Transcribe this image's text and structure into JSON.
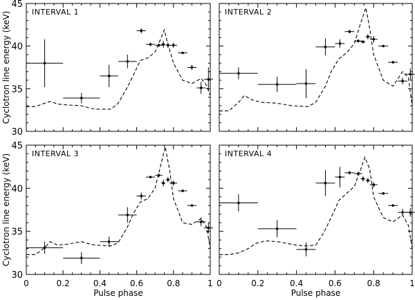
{
  "figure": {
    "ylabel": "Cyclotron line energy (keV)",
    "xlabel": "Pulse phase"
  },
  "chart_data": [
    {
      "type": "scatter",
      "title": "INTERVAL 1",
      "xlabel": "",
      "ylabel": "Cyclotron line energy (keV)",
      "xlim": [
        0,
        1
      ],
      "ylim": [
        30,
        45
      ],
      "x_ticks": [],
      "y_ticks": [
        "30",
        "35",
        "40",
        "45"
      ],
      "points": [
        {
          "x": 0.1,
          "y": 38.0,
          "xerr": 0.1,
          "yerr": 2.8
        },
        {
          "x": 0.3,
          "y": 33.9,
          "xerr": 0.1,
          "yerr": 0.6
        },
        {
          "x": 0.45,
          "y": 36.5,
          "xerr": 0.05,
          "yerr": 1.3
        },
        {
          "x": 0.55,
          "y": 38.2,
          "xerr": 0.05,
          "yerr": 0.8
        },
        {
          "x": 0.625,
          "y": 41.8,
          "xerr": 0.025,
          "yerr": 0.3
        },
        {
          "x": 0.675,
          "y": 40.2,
          "xerr": 0.025,
          "yerr": 0.2
        },
        {
          "x": 0.72,
          "y": 40.1,
          "xerr": 0.02,
          "yerr": 0.2
        },
        {
          "x": 0.745,
          "y": 40.2,
          "xerr": 0.012,
          "yerr": 0.4
        },
        {
          "x": 0.77,
          "y": 40.1,
          "xerr": 0.012,
          "yerr": 0.3
        },
        {
          "x": 0.8,
          "y": 40.1,
          "xerr": 0.02,
          "yerr": 0.3
        },
        {
          "x": 0.85,
          "y": 39.2,
          "xerr": 0.025,
          "yerr": 0.1
        },
        {
          "x": 0.9,
          "y": 37.5,
          "xerr": 0.025,
          "yerr": 0.3
        },
        {
          "x": 0.95,
          "y": 35.1,
          "xerr": 0.025,
          "yerr": 0.7
        },
        {
          "x": 0.99,
          "y": 36.1,
          "xerr": 0.025,
          "yerr": 1.4
        }
      ],
      "profile": [
        [
          0,
          32.9
        ],
        [
          0.05,
          32.9
        ],
        [
          0.1,
          33.3
        ],
        [
          0.13,
          33.5
        ],
        [
          0.17,
          33.2
        ],
        [
          0.22,
          33.1
        ],
        [
          0.3,
          33.0
        ],
        [
          0.35,
          32.7
        ],
        [
          0.38,
          32.6
        ],
        [
          0.46,
          32.6
        ],
        [
          0.5,
          33.3
        ],
        [
          0.55,
          35.2
        ],
        [
          0.58,
          36.5
        ],
        [
          0.62,
          38.3
        ],
        [
          0.66,
          38.6
        ],
        [
          0.7,
          39.3
        ],
        [
          0.73,
          40.8
        ],
        [
          0.75,
          41.9
        ],
        [
          0.77,
          40.2
        ],
        [
          0.8,
          38.0
        ],
        [
          0.85,
          36.0
        ],
        [
          0.9,
          35.6
        ],
        [
          0.95,
          36.2
        ],
        [
          0.98,
          35.4
        ],
        [
          1.0,
          34.2
        ]
      ]
    },
    {
      "type": "scatter",
      "title": "INTERVAL 2",
      "xlabel": "",
      "ylabel": "",
      "xlim": [
        0,
        1
      ],
      "ylim": [
        30,
        45
      ],
      "x_ticks": [],
      "y_ticks": [],
      "points": [
        {
          "x": 0.1,
          "y": 36.8,
          "xerr": 0.1,
          "yerr": 0.7
        },
        {
          "x": 0.3,
          "y": 35.5,
          "xerr": 0.1,
          "yerr": 0.9
        },
        {
          "x": 0.45,
          "y": 35.6,
          "xerr": 0.05,
          "yerr": 1.7
        },
        {
          "x": 0.55,
          "y": 39.9,
          "xerr": 0.05,
          "yerr": 1.0
        },
        {
          "x": 0.625,
          "y": 40.3,
          "xerr": 0.025,
          "yerr": 0.5
        },
        {
          "x": 0.675,
          "y": 41.7,
          "xerr": 0.025,
          "yerr": 0.2
        },
        {
          "x": 0.72,
          "y": 40.6,
          "xerr": 0.02,
          "yerr": 0.2
        },
        {
          "x": 0.745,
          "y": 40.5,
          "xerr": 0.012,
          "yerr": 0.2
        },
        {
          "x": 0.77,
          "y": 41.1,
          "xerr": 0.012,
          "yerr": 0.3
        },
        {
          "x": 0.8,
          "y": 40.8,
          "xerr": 0.02,
          "yerr": 0.4
        },
        {
          "x": 0.85,
          "y": 40.0,
          "xerr": 0.025,
          "yerr": 0.1
        },
        {
          "x": 0.9,
          "y": 38.1,
          "xerr": 0.025,
          "yerr": 0.1
        },
        {
          "x": 0.95,
          "y": 35.9,
          "xerr": 0.025,
          "yerr": 0.4
        },
        {
          "x": 0.99,
          "y": 36.7,
          "xerr": 0.025,
          "yerr": 0.7
        }
      ],
      "profile": [
        [
          0,
          32.4
        ],
        [
          0.05,
          32.4
        ],
        [
          0.1,
          33.4
        ],
        [
          0.13,
          34.2
        ],
        [
          0.17,
          33.7
        ],
        [
          0.22,
          33.4
        ],
        [
          0.3,
          33.3
        ],
        [
          0.35,
          33.1
        ],
        [
          0.38,
          33.0
        ],
        [
          0.46,
          32.9
        ],
        [
          0.5,
          33.4
        ],
        [
          0.55,
          35.3
        ],
        [
          0.58,
          37.0
        ],
        [
          0.62,
          38.5
        ],
        [
          0.66,
          39.2
        ],
        [
          0.7,
          40.3
        ],
        [
          0.73,
          42.5
        ],
        [
          0.76,
          44.5
        ],
        [
          0.78,
          42.0
        ],
        [
          0.8,
          39.0
        ],
        [
          0.85,
          36.0
        ],
        [
          0.9,
          35.3
        ],
        [
          0.95,
          37.0
        ],
        [
          0.98,
          36.3
        ],
        [
          1.0,
          33.0
        ]
      ]
    },
    {
      "type": "scatter",
      "title": "INTERVAL 3",
      "xlabel": "Pulse phase",
      "ylabel": "Cyclotron line energy (keV)",
      "xlim": [
        0,
        1
      ],
      "ylim": [
        30,
        45
      ],
      "x_ticks": [
        "0",
        "0.2",
        "0.4",
        "0.6",
        "0.8",
        "1"
      ],
      "y_ticks": [
        "30",
        "35",
        "40",
        "45"
      ],
      "points": [
        {
          "x": 0.1,
          "y": 33.1,
          "xerr": 0.1,
          "yerr": 0.7
        },
        {
          "x": 0.3,
          "y": 31.9,
          "xerr": 0.1,
          "yerr": 0.7
        },
        {
          "x": 0.45,
          "y": 33.8,
          "xerr": 0.05,
          "yerr": 0.6
        },
        {
          "x": 0.55,
          "y": 36.9,
          "xerr": 0.05,
          "yerr": 0.9
        },
        {
          "x": 0.625,
          "y": 39.1,
          "xerr": 0.025,
          "yerr": 0.4
        },
        {
          "x": 0.675,
          "y": 41.3,
          "xerr": 0.025,
          "yerr": 0.1
        },
        {
          "x": 0.72,
          "y": 41.5,
          "xerr": 0.02,
          "yerr": 0.2
        },
        {
          "x": 0.745,
          "y": 40.6,
          "xerr": 0.012,
          "yerr": 0.4
        },
        {
          "x": 0.77,
          "y": 41.0,
          "xerr": 0.012,
          "yerr": 0.3
        },
        {
          "x": 0.8,
          "y": 40.6,
          "xerr": 0.02,
          "yerr": 0.3
        },
        {
          "x": 0.85,
          "y": 39.7,
          "xerr": 0.025,
          "yerr": 0.1
        },
        {
          "x": 0.9,
          "y": 38.0,
          "xerr": 0.025,
          "yerr": 0.1
        },
        {
          "x": 0.95,
          "y": 36.1,
          "xerr": 0.025,
          "yerr": 0.5
        },
        {
          "x": 0.99,
          "y": 35.4,
          "xerr": 0.025,
          "yerr": 0.6
        }
      ],
      "profile": [
        [
          0,
          32.3
        ],
        [
          0.05,
          32.3
        ],
        [
          0.1,
          33.1
        ],
        [
          0.13,
          33.8
        ],
        [
          0.17,
          33.4
        ],
        [
          0.22,
          33.5
        ],
        [
          0.3,
          33.8
        ],
        [
          0.35,
          33.5
        ],
        [
          0.38,
          33.4
        ],
        [
          0.46,
          33.3
        ],
        [
          0.5,
          33.7
        ],
        [
          0.55,
          35.5
        ],
        [
          0.58,
          37.0
        ],
        [
          0.62,
          38.4
        ],
        [
          0.66,
          38.8
        ],
        [
          0.7,
          40.0
        ],
        [
          0.73,
          42.6
        ],
        [
          0.755,
          44.8
        ],
        [
          0.78,
          42.0
        ],
        [
          0.8,
          38.8
        ],
        [
          0.85,
          36.0
        ],
        [
          0.9,
          35.8
        ],
        [
          0.95,
          36.5
        ],
        [
          0.98,
          35.5
        ],
        [
          1.0,
          33.0
        ]
      ]
    },
    {
      "type": "scatter",
      "title": "INTERVAL 4",
      "xlabel": "Pulse phase",
      "ylabel": "",
      "xlim": [
        0,
        1
      ],
      "ylim": [
        30,
        45
      ],
      "x_ticks": [
        "0",
        "0.2",
        "0.4",
        "0.6",
        "0.8",
        "1"
      ],
      "y_ticks": [],
      "points": [
        {
          "x": 0.1,
          "y": 38.3,
          "xerr": 0.1,
          "yerr": 1.0
        },
        {
          "x": 0.3,
          "y": 35.3,
          "xerr": 0.1,
          "yerr": 1.0
        },
        {
          "x": 0.45,
          "y": 32.9,
          "xerr": 0.05,
          "yerr": 0.8
        },
        {
          "x": 0.55,
          "y": 40.6,
          "xerr": 0.05,
          "yerr": 1.5
        },
        {
          "x": 0.625,
          "y": 41.3,
          "xerr": 0.025,
          "yerr": 1.2
        },
        {
          "x": 0.675,
          "y": 41.8,
          "xerr": 0.025,
          "yerr": 0.2
        },
        {
          "x": 0.72,
          "y": 41.7,
          "xerr": 0.02,
          "yerr": 0.2
        },
        {
          "x": 0.745,
          "y": 41.1,
          "xerr": 0.012,
          "yerr": 0.3
        },
        {
          "x": 0.77,
          "y": 40.9,
          "xerr": 0.012,
          "yerr": 0.3
        },
        {
          "x": 0.8,
          "y": 40.4,
          "xerr": 0.02,
          "yerr": 0.3
        },
        {
          "x": 0.85,
          "y": 39.4,
          "xerr": 0.025,
          "yerr": 0.1
        },
        {
          "x": 0.9,
          "y": 38.0,
          "xerr": 0.025,
          "yerr": 0.1
        },
        {
          "x": 0.95,
          "y": 37.2,
          "xerr": 0.025,
          "yerr": 0.4
        },
        {
          "x": 0.99,
          "y": 37.2,
          "xerr": 0.025,
          "yerr": 0.5
        }
      ],
      "profile": [
        [
          0,
          32.3
        ],
        [
          0.05,
          32.3
        ],
        [
          0.1,
          32.5
        ],
        [
          0.15,
          33.0
        ],
        [
          0.19,
          33.6
        ],
        [
          0.24,
          33.9
        ],
        [
          0.3,
          33.8
        ],
        [
          0.35,
          33.6
        ],
        [
          0.4,
          33.4
        ],
        [
          0.45,
          33.3
        ],
        [
          0.5,
          33.4
        ],
        [
          0.54,
          34.8
        ],
        [
          0.58,
          36.6
        ],
        [
          0.62,
          38.6
        ],
        [
          0.66,
          39.4
        ],
        [
          0.7,
          40.2
        ],
        [
          0.73,
          42.0
        ],
        [
          0.755,
          43.6
        ],
        [
          0.78,
          42.2
        ],
        [
          0.8,
          39.0
        ],
        [
          0.85,
          36.6
        ],
        [
          0.9,
          36.1
        ],
        [
          0.95,
          36.9
        ],
        [
          0.98,
          35.7
        ],
        [
          1.0,
          33.0
        ]
      ]
    }
  ]
}
